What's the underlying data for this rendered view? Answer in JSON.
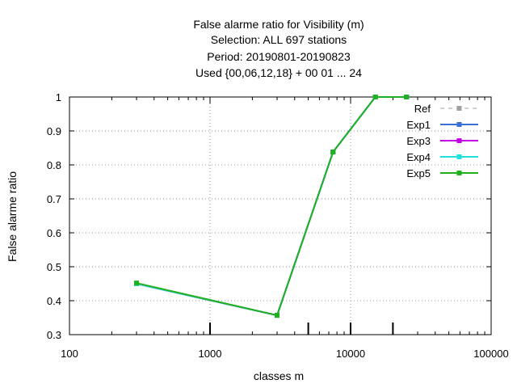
{
  "chart_data": {
    "type": "line",
    "title_lines": [
      "False alarme ratio  for Visibility (m)",
      "Selection: ALL    697 stations",
      "Period: 20190801-20190823",
      "Used {00,06,12,18} + 00 01 ... 24"
    ],
    "xlabel": "classes m",
    "ylabel": "False alarme ratio",
    "xscale": "log",
    "xlim": [
      100,
      100000
    ],
    "ylim": [
      0.3,
      1.0
    ],
    "xticks": [
      100,
      1000,
      10000,
      100000
    ],
    "xtick_labels": [
      "100",
      "1000",
      "10000",
      "100000"
    ],
    "yticks": [
      0.3,
      0.4,
      0.5,
      0.6,
      0.7,
      0.8,
      0.9,
      1.0
    ],
    "ytick_labels": [
      "0.3",
      "0.4",
      "0.5",
      "0.6",
      "0.7",
      "0.8",
      "0.9",
      "1"
    ],
    "grid": true,
    "legend_position": "top-right",
    "class_marks_x": [
      1000,
      5000,
      10000,
      20000
    ],
    "series": [
      {
        "name": "Ref",
        "color": "#a0a0a0",
        "dashed": true,
        "x": [],
        "y": []
      },
      {
        "name": "Exp1",
        "color": "#3a6fd8",
        "dashed": false,
        "x": [
          300,
          3000,
          7500,
          15000,
          25000
        ],
        "y": [
          0.45,
          0.357,
          0.838,
          1.0,
          1.0
        ]
      },
      {
        "name": "Exp3",
        "color": "#c000e0",
        "dashed": false,
        "x": [
          300,
          3000,
          7500,
          15000,
          25000
        ],
        "y": [
          0.45,
          0.357,
          0.838,
          1.0,
          1.0
        ]
      },
      {
        "name": "Exp4",
        "color": "#20e0e0",
        "dashed": false,
        "x": [
          300,
          3000,
          7500,
          15000,
          25000
        ],
        "y": [
          0.45,
          0.357,
          0.838,
          1.0,
          1.0
        ]
      },
      {
        "name": "Exp5",
        "color": "#20b020",
        "dashed": false,
        "x": [
          300,
          3000,
          7500,
          15000,
          25000
        ],
        "y": [
          0.452,
          0.357,
          0.838,
          1.0,
          1.0
        ]
      }
    ]
  }
}
